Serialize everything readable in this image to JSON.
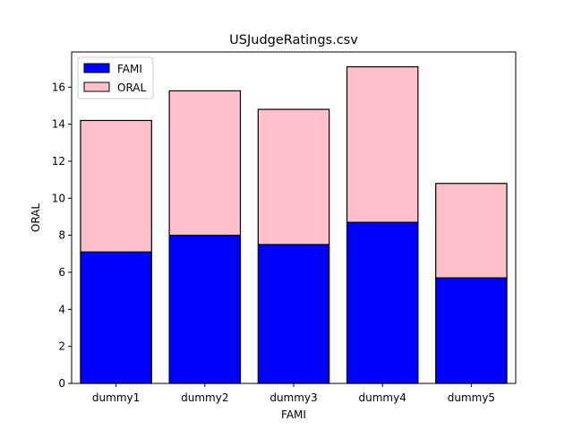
{
  "chart_data": {
    "type": "bar",
    "stacked": true,
    "title": "USJudgeRatings.csv",
    "xlabel": "FAMI",
    "ylabel": "ORAL",
    "categories": [
      "dummy1",
      "dummy2",
      "dummy3",
      "dummy4",
      "dummy5"
    ],
    "series": [
      {
        "name": "FAMI",
        "color": "#0000ff",
        "values": [
          7.1,
          8.0,
          7.5,
          8.7,
          5.7
        ]
      },
      {
        "name": "ORAL",
        "color": "#ffc0cb",
        "values": [
          7.1,
          7.8,
          7.3,
          8.4,
          5.1
        ]
      }
    ],
    "ylim": [
      0,
      17.9
    ],
    "yticks": [
      0,
      2,
      4,
      6,
      8,
      10,
      12,
      14,
      16
    ],
    "grid": false,
    "legend_position": "upper-left"
  }
}
